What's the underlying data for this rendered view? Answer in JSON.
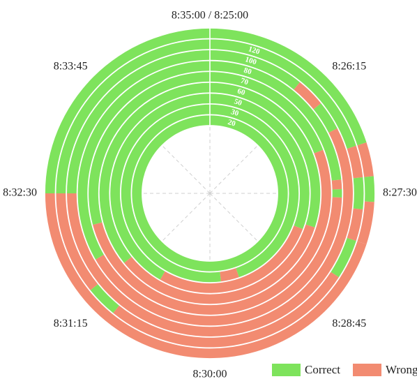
{
  "chart_data": {
    "type": "radial-timeline",
    "title": "",
    "time_start": "8:25:00",
    "time_end": "8:35:00",
    "angle_ticks": [
      {
        "label": "8:35:00 / 8:25:00",
        "time": "8:25:00"
      },
      {
        "label": "8:26:15",
        "time": "8:26:15"
      },
      {
        "label": "8:27:30",
        "time": "8:27:30"
      },
      {
        "label": "8:28:45",
        "time": "8:28:45"
      },
      {
        "label": "8:30:00",
        "time": "8:30:00"
      },
      {
        "label": "8:31:15",
        "time": "8:31:15"
      },
      {
        "label": "8:32:30",
        "time": "8:32:30"
      },
      {
        "label": "8:33:45",
        "time": "8:33:45"
      }
    ],
    "legend": {
      "placement": "bottom-right",
      "entries": [
        {
          "name": "Correct",
          "color": "#7ee35c"
        },
        {
          "name": "Wrong",
          "color": "#f28b71"
        }
      ]
    },
    "series": [
      {
        "name": "Correct",
        "color": "#7ee35c"
      },
      {
        "name": "Wrong",
        "color": "#f28b71"
      }
    ],
    "rings": [
      {
        "label": "20",
        "segments": [
          {
            "status": "Correct",
            "start": "8:25:00",
            "end": "8:35:00"
          }
        ]
      },
      {
        "label": "30",
        "segments": [
          {
            "status": "Correct",
            "start": "8:25:00",
            "end": "8:29:28"
          },
          {
            "status": "Wrong",
            "start": "8:29:28",
            "end": "8:29:48"
          },
          {
            "status": "Correct",
            "start": "8:29:48",
            "end": "8:35:00"
          }
        ]
      },
      {
        "label": "50",
        "segments": [
          {
            "status": "Correct",
            "start": "8:25:00",
            "end": "8:28:05"
          },
          {
            "status": "Wrong",
            "start": "8:28:05",
            "end": "8:30:50"
          },
          {
            "status": "Correct",
            "start": "8:30:50",
            "end": "8:35:00"
          }
        ]
      },
      {
        "label": "60",
        "segments": [
          {
            "status": "Correct",
            "start": "8:25:00",
            "end": "8:28:00"
          },
          {
            "status": "Wrong",
            "start": "8:28:00",
            "end": "8:31:25"
          },
          {
            "status": "Correct",
            "start": "8:31:25",
            "end": "8:35:00"
          }
        ]
      },
      {
        "label": "70",
        "segments": [
          {
            "status": "Correct",
            "start": "8:25:00",
            "end": "8:26:55"
          },
          {
            "status": "Wrong",
            "start": "8:26:55",
            "end": "8:32:05"
          },
          {
            "status": "Correct",
            "start": "8:32:05",
            "end": "8:35:00"
          }
        ]
      },
      {
        "label": "80",
        "segments": [
          {
            "status": "Correct",
            "start": "8:25:00",
            "end": "8:27:20"
          },
          {
            "status": "Wrong",
            "start": "8:27:20",
            "end": "8:27:27"
          },
          {
            "status": "Correct",
            "start": "8:27:27",
            "end": "8:27:33"
          },
          {
            "status": "Wrong",
            "start": "8:27:33",
            "end": "8:31:40"
          },
          {
            "status": "Correct",
            "start": "8:31:40",
            "end": "8:35:00"
          }
        ]
      },
      {
        "label": "100",
        "segments": [
          {
            "status": "Correct",
            "start": "8:25:00",
            "end": "8:26:05"
          },
          {
            "status": "Wrong",
            "start": "8:26:05",
            "end": "8:26:25"
          },
          {
            "status": "Correct",
            "start": "8:26:25",
            "end": "8:26:45"
          },
          {
            "status": "Wrong",
            "start": "8:26:45",
            "end": "8:32:30"
          },
          {
            "status": "Correct",
            "start": "8:32:30",
            "end": "8:35:00"
          }
        ]
      },
      {
        "label": "120",
        "segments": [
          {
            "status": "Correct",
            "start": "8:25:00",
            "end": "8:27:00"
          },
          {
            "status": "Wrong",
            "start": "8:27:00",
            "end": "8:27:20"
          },
          {
            "status": "Correct",
            "start": "8:27:20",
            "end": "8:27:40"
          },
          {
            "status": "Wrong",
            "start": "8:27:40",
            "end": "8:28:00"
          },
          {
            "status": "Correct",
            "start": "8:28:00",
            "end": "8:28:25"
          },
          {
            "status": "Wrong",
            "start": "8:28:25",
            "end": "8:31:05"
          },
          {
            "status": "Correct",
            "start": "8:31:05",
            "end": "8:31:25"
          },
          {
            "status": "Wrong",
            "start": "8:31:25",
            "end": "8:32:30"
          },
          {
            "status": "Correct",
            "start": "8:32:30",
            "end": "8:35:00"
          }
        ]
      },
      {
        "label": "",
        "segments": [
          {
            "status": "Correct",
            "start": "8:25:00",
            "end": "8:27:00"
          },
          {
            "status": "Wrong",
            "start": "8:27:00",
            "end": "8:27:20"
          },
          {
            "status": "Correct",
            "start": "8:27:20",
            "end": "8:27:35"
          },
          {
            "status": "Wrong",
            "start": "8:27:35",
            "end": "8:28:00"
          },
          {
            "status": "Wrong",
            "start": "8:28:00",
            "end": "8:32:30"
          },
          {
            "status": "Correct",
            "start": "8:32:30",
            "end": "8:35:00"
          }
        ]
      }
    ],
    "grid": true
  }
}
